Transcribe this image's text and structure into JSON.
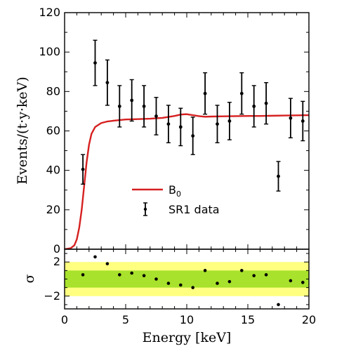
{
  "chart_data": [
    {
      "type": "scatter",
      "panel": "main",
      "xlabel": "Energy [keV]",
      "ylabel": "Events/(t·y·keV)",
      "xlim": [
        0,
        20
      ],
      "ylim": [
        0,
        120
      ],
      "xticks": [
        "0",
        "5",
        "10",
        "15",
        "20"
      ],
      "yticks": [
        "0",
        "20",
        "40",
        "60",
        "80",
        "100",
        "120"
      ],
      "legend_position": "center",
      "legend": [
        {
          "label_main": "B",
          "label_sub": "0",
          "kind": "line",
          "color": "#d62020"
        },
        {
          "label_main": "SR1 data",
          "label_sub": "",
          "kind": "errorbar",
          "color": "#000000"
        }
      ],
      "series": [
        {
          "name": "B0",
          "kind": "line",
          "color": "#d62020",
          "x": [
            0.0,
            0.5,
            0.8,
            1.0,
            1.2,
            1.4,
            1.6,
            1.8,
            2.0,
            2.2,
            2.5,
            3.0,
            3.5,
            4.0,
            5.0,
            6.0,
            7.0,
            8.0,
            9.0,
            9.5,
            10.0,
            10.5,
            11.0,
            11.5,
            12.0,
            13.0,
            14.0,
            15.0,
            16.0,
            17.0,
            18.0,
            19.0,
            20.0
          ],
          "y": [
            0.0,
            0.5,
            2.0,
            5.0,
            11.0,
            20.0,
            32.0,
            44.0,
            53.0,
            58.5,
            62.0,
            64.0,
            64.8,
            65.2,
            65.8,
            66.0,
            66.2,
            66.6,
            67.6,
            68.3,
            68.5,
            68.0,
            67.5,
            67.2,
            67.3,
            67.4,
            67.5,
            67.6,
            67.6,
            67.7,
            67.8,
            67.9,
            68.0
          ]
        },
        {
          "name": "SR1 data",
          "kind": "errorbar",
          "color": "#000000",
          "x": [
            1.5,
            2.5,
            3.5,
            4.5,
            5.5,
            6.5,
            7.5,
            8.5,
            9.5,
            10.5,
            11.5,
            12.5,
            13.5,
            14.5,
            15.5,
            16.5,
            17.5,
            18.5,
            19.5
          ],
          "y": [
            40.5,
            94.5,
            84.5,
            72.5,
            75.5,
            72.5,
            67.5,
            63.5,
            62.0,
            57.5,
            79.0,
            63.5,
            65.0,
            79.0,
            72.5,
            74.0,
            37.0,
            66.5,
            65.0
          ],
          "err": [
            7.5,
            11.5,
            11.5,
            10.5,
            10.5,
            10.5,
            9.5,
            9.5,
            9.5,
            9.5,
            10.5,
            9.5,
            9.5,
            10.5,
            10.5,
            10.5,
            7.5,
            10.0,
            10.0
          ]
        }
      ]
    },
    {
      "type": "scatter",
      "panel": "residual",
      "xlabel": "Energy [keV]",
      "ylabel": "σ",
      "xlim": [
        0,
        20
      ],
      "ylim": [
        -3.5,
        3.5
      ],
      "xticks": [
        "0",
        "5",
        "10",
        "15",
        "20"
      ],
      "yticks": [
        "2",
        "−2"
      ],
      "bands": [
        {
          "level": "2 sigma",
          "range": [
            -2,
            2
          ],
          "color": "#ffff80"
        },
        {
          "level": "1 sigma",
          "range": [
            -1,
            1
          ],
          "color": "#a8e22c"
        }
      ],
      "series": [
        {
          "name": "residuals",
          "color": "#000000",
          "x": [
            1.5,
            2.5,
            3.5,
            4.5,
            5.5,
            6.5,
            7.5,
            8.5,
            9.5,
            10.5,
            11.5,
            12.5,
            13.5,
            14.5,
            15.5,
            16.5,
            17.5,
            18.5,
            19.5
          ],
          "y": [
            0.5,
            2.6,
            1.8,
            0.5,
            0.7,
            0.4,
            0.0,
            -0.5,
            -0.7,
            -1.0,
            1.0,
            -0.5,
            -0.3,
            1.0,
            0.4,
            0.5,
            -3.0,
            -0.2,
            -0.4
          ]
        }
      ]
    }
  ]
}
